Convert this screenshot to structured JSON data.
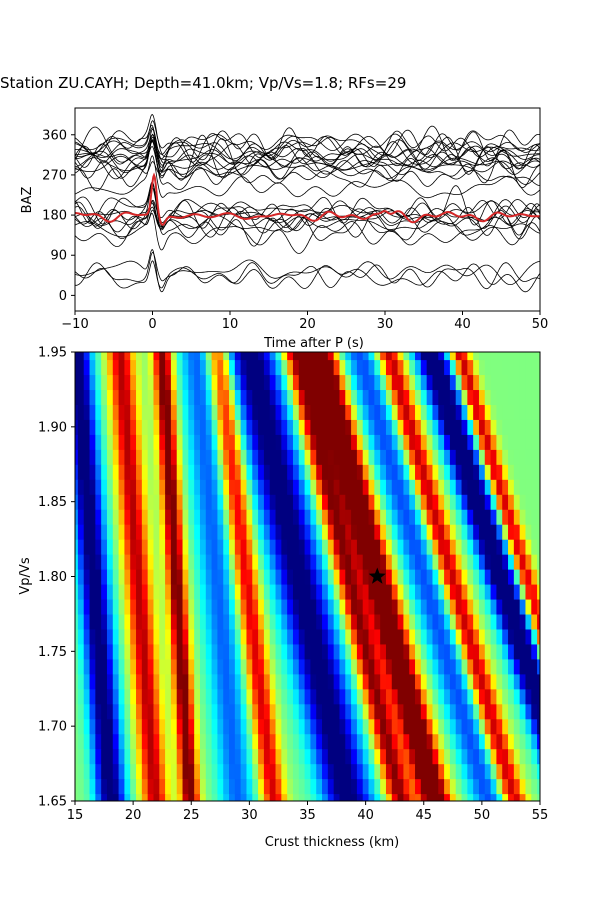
{
  "title": "Station ZU.CAYH; Depth=41.0km; Vp/Vs=1.8; RFs=29",
  "chart_data": [
    {
      "type": "line",
      "panel": "receiver-functions",
      "xlabel": "Time after P (s)",
      "ylabel": "BAZ",
      "xlim": [
        -10,
        50
      ],
      "ylim": [
        -35,
        420
      ],
      "xticks": [
        -10,
        0,
        10,
        20,
        30,
        40,
        50
      ],
      "yticks": [
        0,
        90,
        180,
        270,
        360
      ],
      "trace_count": 29,
      "trace_color": "#000000",
      "stack_color": "#d62728",
      "trace_baz": [
        40,
        45,
        55,
        135,
        150,
        160,
        165,
        170,
        175,
        180,
        185,
        190,
        195,
        240,
        265,
        280,
        285,
        290,
        295,
        300,
        305,
        310,
        315,
        320,
        325,
        330,
        335,
        340,
        345
      ],
      "stack": {
        "name": "",
        "baseline_baz": 178,
        "peak_time": 0.2,
        "peak_baz": 270,
        "post_peak_trough": 160,
        "secondary_peak_time": 30
      }
    },
    {
      "type": "heatmap",
      "panel": "h-kappa-grid",
      "xlabel": "Crust thickness (km)",
      "ylabel": "Vp/Vs",
      "xlim": [
        15,
        55
      ],
      "ylim": [
        1.65,
        1.95
      ],
      "xticks": [
        15,
        20,
        25,
        30,
        35,
        40,
        45,
        50,
        55
      ],
      "yticks": [
        "1.65",
        "1.70",
        "1.75",
        "1.80",
        "1.85",
        "1.90",
        "1.95"
      ],
      "colormap": "jet",
      "best_fit": {
        "thickness_km": 41.0,
        "vpvs": 1.8,
        "marker": "star"
      }
    }
  ]
}
